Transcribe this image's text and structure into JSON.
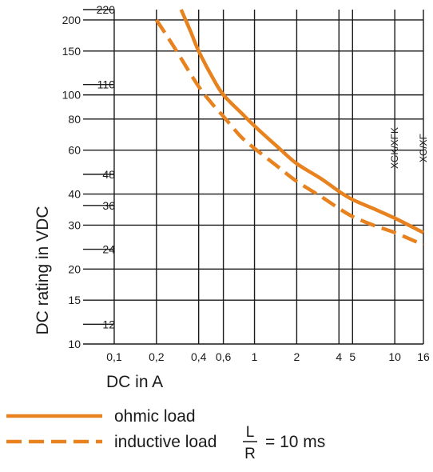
{
  "chart_data": {
    "type": "line",
    "xlabel": "DC in A",
    "ylabel": "DC rating in VDC",
    "x_scale": "log",
    "y_scale": "log",
    "xlim": [
      0.06,
      16
    ],
    "ylim": [
      10,
      220
    ],
    "grid": true,
    "x_ticks": [
      {
        "value": 0.1,
        "label": "0,1"
      },
      {
        "value": 0.2,
        "label": "0,2"
      },
      {
        "value": 0.4,
        "label": "0,4"
      },
      {
        "value": 0.6,
        "label": "0,6"
      },
      {
        "value": 1,
        "label": "1"
      },
      {
        "value": 2,
        "label": "2"
      },
      {
        "value": 4,
        "label": "4"
      },
      {
        "value": 5,
        "label": "5"
      },
      {
        "value": 10,
        "label": "10"
      },
      {
        "value": 16,
        "label": "16"
      }
    ],
    "y_ticks_left": [
      {
        "value": 200,
        "label": "200"
      },
      {
        "value": 150,
        "label": "150"
      },
      {
        "value": 100,
        "label": "100"
      },
      {
        "value": 80,
        "label": "80"
      },
      {
        "value": 60,
        "label": "60"
      },
      {
        "value": 40,
        "label": "40"
      },
      {
        "value": 30,
        "label": "30"
      },
      {
        "value": 20,
        "label": "20"
      },
      {
        "value": 15,
        "label": "15"
      },
      {
        "value": 10,
        "label": "10"
      }
    ],
    "y_ticks_right": [
      {
        "value": 220,
        "label": "220"
      },
      {
        "value": 110,
        "label": "110"
      },
      {
        "value": 48,
        "label": "48"
      },
      {
        "value": 36,
        "label": "36"
      },
      {
        "value": 24,
        "label": "24"
      },
      {
        "value": 12,
        "label": "12"
      }
    ],
    "vertical_labels": [
      {
        "text": "XGK/XFK",
        "x": 10
      },
      {
        "text": "XG/XF",
        "x": 16
      }
    ],
    "series": [
      {
        "name": "ohmic load",
        "style": "solid",
        "color": "#e8821e",
        "x": [
          0.3,
          0.35,
          0.4,
          0.5,
          0.6,
          0.8,
          1,
          1.5,
          2,
          3,
          4,
          5,
          7,
          10,
          16
        ],
        "y": [
          220,
          180,
          150,
          118,
          100,
          85,
          75,
          61,
          53,
          46,
          41,
          38,
          35,
          32,
          28
        ]
      },
      {
        "name": "inductive load",
        "style": "dashed",
        "color": "#e8821e",
        "x": [
          0.2,
          0.25,
          0.3,
          0.4,
          0.5,
          0.6,
          0.8,
          1,
          1.5,
          2,
          3,
          4,
          5,
          7,
          10,
          16
        ],
        "y": [
          200,
          165,
          140,
          108,
          92,
          82,
          68,
          61,
          51,
          45,
          39,
          35,
          32.5,
          30,
          28,
          25
        ]
      }
    ]
  },
  "legend": {
    "ohmic_label": "ohmic load",
    "inductive_label": "inductive load",
    "fraction_numerator": "L",
    "fraction_denominator": "R",
    "inductive_suffix": "= 10 ms"
  }
}
